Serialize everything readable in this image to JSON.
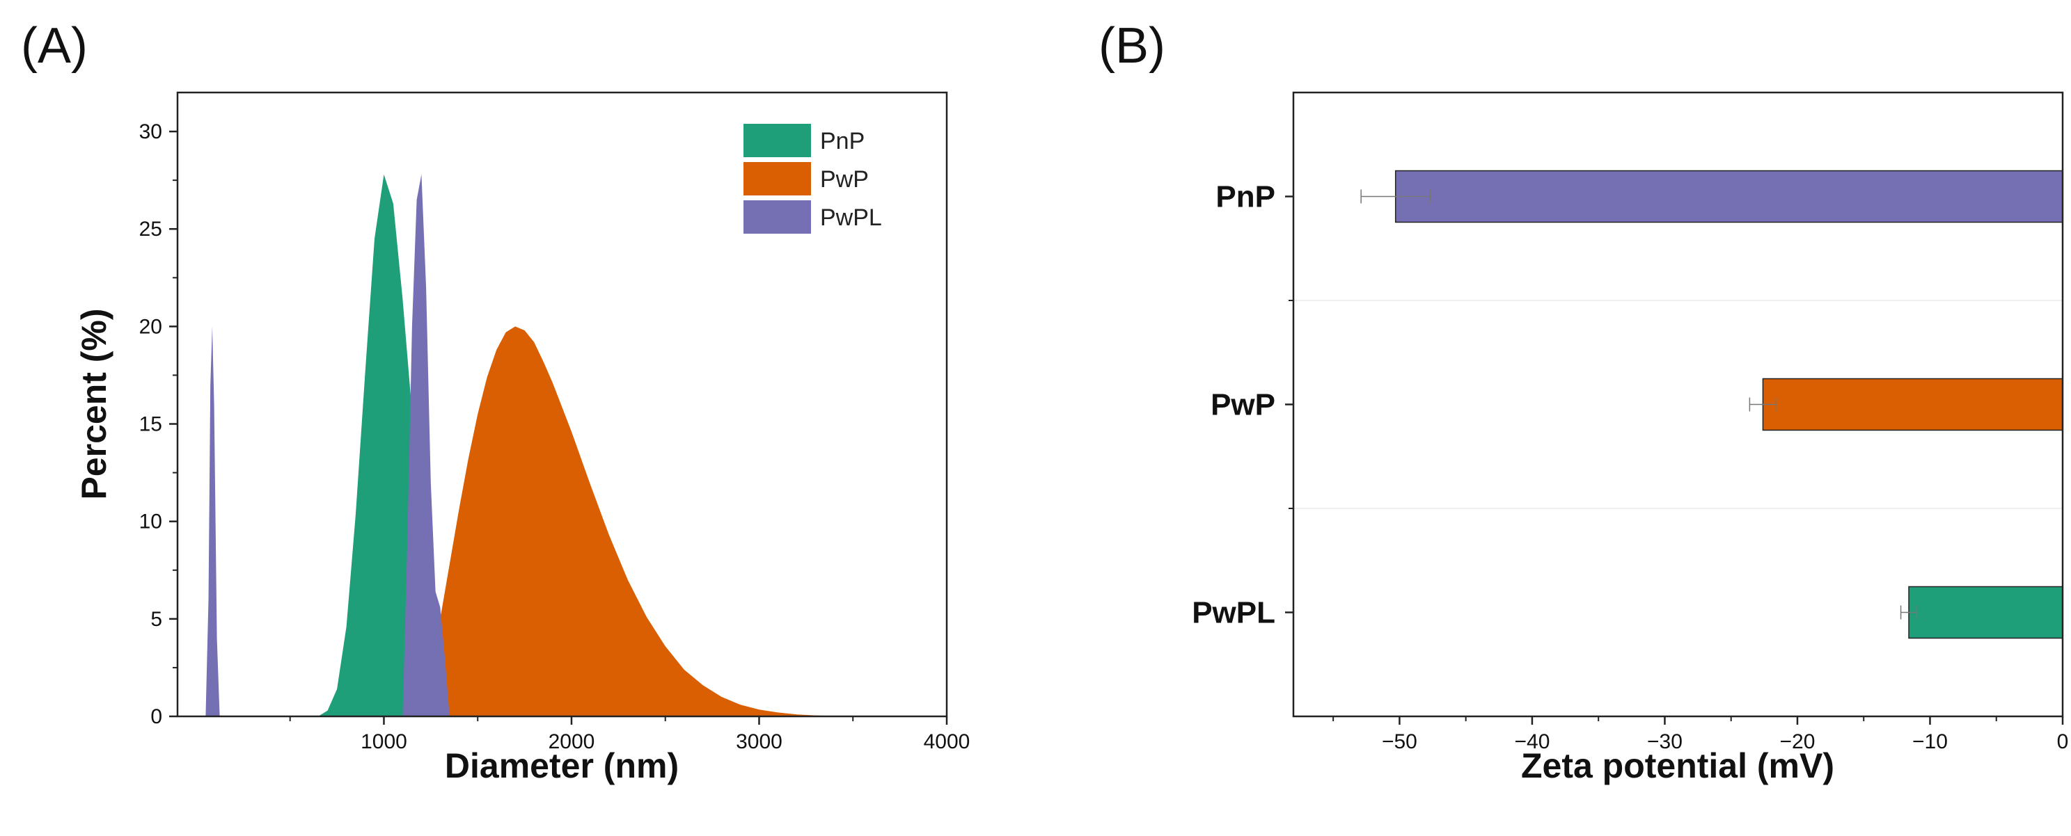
{
  "panels": {
    "a_label": "(A)",
    "b_label": "(B)"
  },
  "chart_data": [
    {
      "type": "area",
      "panel": "A",
      "xlabel": "Diameter (nm)",
      "ylabel": "Percent (%)",
      "xlim": [
        -100,
        4000
      ],
      "ylim": [
        0,
        32
      ],
      "xticks": [
        1000,
        2000,
        3000,
        4000
      ],
      "yticks": [
        0,
        5,
        10,
        15,
        20,
        25,
        30
      ],
      "legend_position": "top-right",
      "series": [
        {
          "name": "PnP",
          "color": "#1f9e7a",
          "x": [
            650,
            700,
            750,
            800,
            850,
            900,
            950,
            1000,
            1050,
            1100,
            1150,
            1200,
            1250,
            1300,
            1350,
            1400,
            1450,
            1500
          ],
          "y": [
            0,
            0.3,
            1.4,
            4.6,
            10.4,
            17.6,
            24.5,
            27.8,
            26.3,
            21.4,
            15.6,
            10.2,
            5.9,
            3.1,
            1.4,
            0.6,
            0.2,
            0
          ]
        },
        {
          "name": "PwP",
          "color": "#d95f02",
          "x": [
            1150,
            1200,
            1250,
            1300,
            1350,
            1400,
            1450,
            1500,
            1550,
            1600,
            1650,
            1700,
            1750,
            1800,
            1850,
            1900,
            2000,
            2100,
            2200,
            2300,
            2400,
            2500,
            2600,
            2700,
            2800,
            2900,
            3000,
            3100,
            3200,
            3300,
            3400,
            3500
          ],
          "y": [
            0,
            1.0,
            2.7,
            5.0,
            7.8,
            10.6,
            13.2,
            15.5,
            17.4,
            18.8,
            19.7,
            20.0,
            19.8,
            19.2,
            18.2,
            17.1,
            14.6,
            11.9,
            9.3,
            7.0,
            5.1,
            3.6,
            2.4,
            1.6,
            1.0,
            0.6,
            0.35,
            0.2,
            0.1,
            0.05,
            0.02,
            0
          ]
        },
        {
          "name": "PwPL",
          "color": "#7570b3",
          "x": [
            50,
            65,
            75,
            85,
            95,
            110,
            125,
            1100,
            1125,
            1150,
            1175,
            1200,
            1225,
            1250,
            1275,
            1300,
            1325,
            1350
          ],
          "y": [
            0,
            6,
            17,
            20,
            16,
            4,
            0,
            0,
            9,
            20,
            26.5,
            27.8,
            22,
            12,
            6.4,
            5.6,
            3,
            0
          ]
        }
      ]
    },
    {
      "type": "bar",
      "orientation": "horizontal",
      "panel": "B",
      "xlabel": "Zeta potential (mV)",
      "ylabel": "",
      "xlim": [
        -58,
        0
      ],
      "xticks": [
        -50,
        -40,
        -30,
        -20,
        -10,
        0
      ],
      "xtick_labels": [
        "−50",
        "−40",
        "−30",
        "−20",
        "−10",
        "0"
      ],
      "categories": [
        "PnP",
        "PwP",
        "PwPL"
      ],
      "values": [
        -50.3,
        -22.6,
        -11.6
      ],
      "errors": [
        2.6,
        1.0,
        0.6
      ],
      "colors": [
        "#7570b3",
        "#d95f02",
        "#1f9e7a"
      ]
    }
  ]
}
